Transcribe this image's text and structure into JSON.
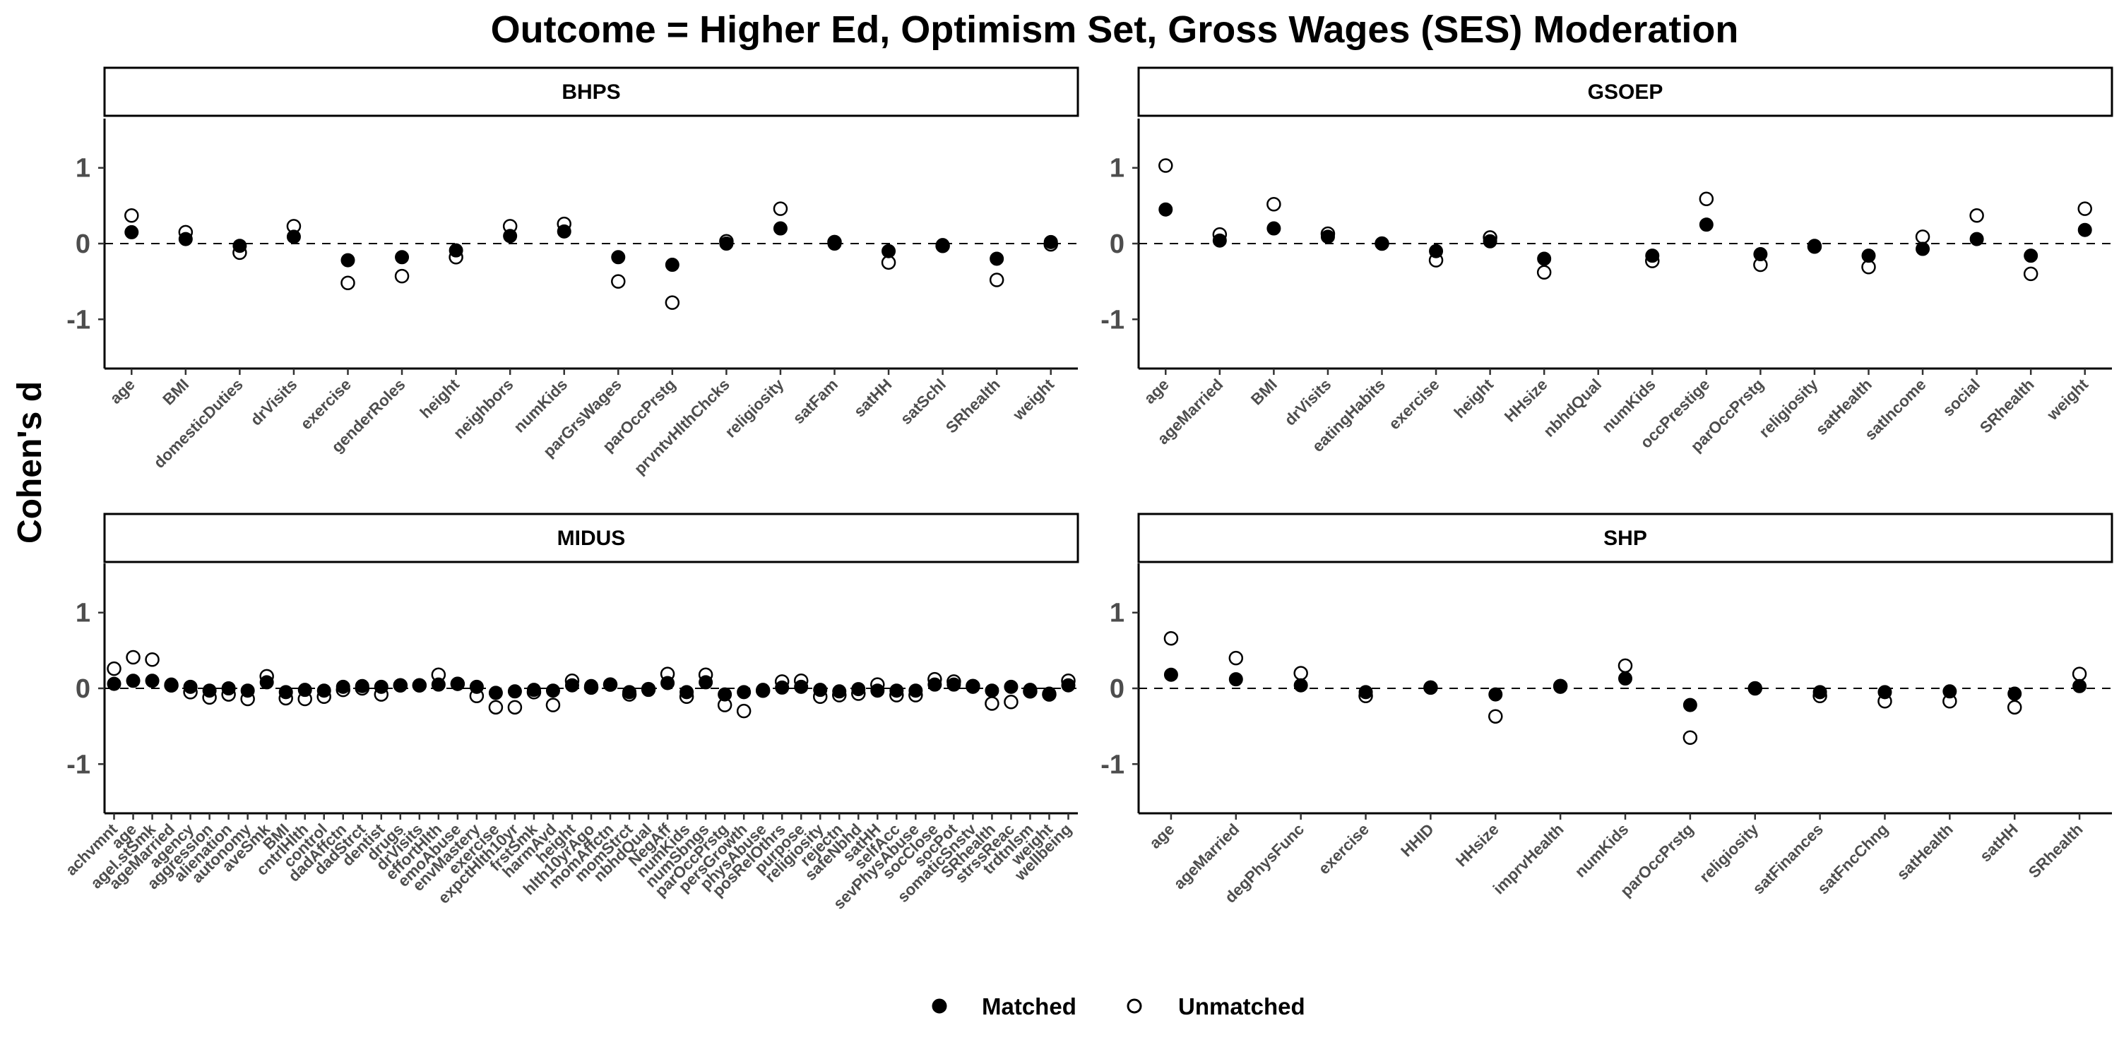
{
  "chart_data": {
    "type": "scatter",
    "title": "Outcome = Higher Ed, Optimism Set, Gross Wages (SES) Moderation",
    "ylabel": "Cohen's d",
    "ylim": [
      -1.65,
      1.65
    ],
    "yticks": [
      -1,
      0,
      1
    ],
    "reference_line": 0,
    "legend": {
      "position": "bottom",
      "entries": [
        {
          "label": "Matched",
          "marker": "filled-circle"
        },
        {
          "label": "Unmatched",
          "marker": "open-circle"
        }
      ]
    },
    "colors": {
      "points": "#000000",
      "border": "#000000",
      "strip_fill": "#ffffff"
    },
    "panels": [
      {
        "strip": "BHPS",
        "categories": [
          "age",
          "BMI",
          "domesticDuties",
          "drVisits",
          "exercise",
          "genderRoles",
          "height",
          "neighbors",
          "numKids",
          "parGrsWages",
          "parOccPrstg",
          "prvntvHlthChcks",
          "religiosity",
          "satFam",
          "satHH",
          "satSchl",
          "SRhealth",
          "weight"
        ],
        "series": [
          {
            "name": "Matched",
            "values": [
              0.15,
              0.06,
              -0.03,
              0.09,
              -0.22,
              -0.18,
              -0.09,
              0.1,
              0.16,
              -0.18,
              -0.28,
              0.0,
              0.2,
              0.0,
              -0.1,
              -0.02,
              -0.2,
              0.02
            ]
          },
          {
            "name": "Unmatched",
            "values": [
              0.37,
              0.15,
              -0.12,
              0.23,
              -0.52,
              -0.43,
              -0.18,
              0.23,
              0.26,
              -0.5,
              -0.78,
              0.03,
              0.46,
              0.02,
              -0.25,
              -0.03,
              -0.48,
              -0.01
            ]
          }
        ]
      },
      {
        "strip": "GSOEP",
        "categories": [
          "age",
          "ageMarried",
          "BMI",
          "drVisits",
          "eatingHabits",
          "exercise",
          "height",
          "HHsize",
          "nbhdQual",
          "numKids",
          "occPrestige",
          "parOccPrstg",
          "religiosity",
          "satHealth",
          "satIncome",
          "social",
          "SRhealth",
          "weight"
        ],
        "series": [
          {
            "name": "Matched",
            "values": [
              0.45,
              0.04,
              0.2,
              0.09,
              0.0,
              -0.1,
              0.03,
              -0.2,
              null,
              -0.16,
              0.25,
              -0.14,
              -0.03,
              -0.16,
              -0.07,
              0.06,
              -0.16,
              0.18
            ]
          },
          {
            "name": "Unmatched",
            "values": [
              1.03,
              0.12,
              0.52,
              0.13,
              0.0,
              -0.22,
              0.08,
              -0.38,
              null,
              -0.23,
              0.59,
              -0.28,
              -0.04,
              -0.31,
              0.09,
              0.37,
              -0.4,
              0.46
            ]
          }
        ]
      },
      {
        "strip": "MIDUS",
        "categories": [
          "achvmnt",
          "age",
          "agel.stSmk",
          "ageMarried",
          "agency",
          "aggression",
          "alienation",
          "autonomy",
          "aveSmk",
          "BMI",
          "cntrlHlth",
          "control",
          "dadAffctn",
          "dadStrct",
          "dentist",
          "drugs",
          "drVisits",
          "effortHlth",
          "emoAbuse",
          "envMastery",
          "exercise",
          "expctHlth10yr",
          "frstSmk",
          "harmAvd",
          "height",
          "hlth10yrAgo",
          "momAffctn",
          "momStrct",
          "nbhdQual",
          "NegAff",
          "numKids",
          "numSbngs",
          "parOccPrstg",
          "persGrowth",
          "physAbuse",
          "posRelOthrs",
          "purpose",
          "religiosity",
          "rejectn",
          "safeNbhd",
          "satHH",
          "selfAcc",
          "sevPhysAbuse",
          "socClose",
          "socPot",
          "somaticSnstv",
          "SRhealth",
          "strssReac",
          "trdtnlsm",
          "weight",
          "wellbeing"
        ],
        "series": [
          {
            "name": "Matched",
            "values": [
              0.06,
              0.1,
              0.1,
              0.05,
              0.02,
              -0.03,
              0.0,
              -0.03,
              0.08,
              -0.05,
              -0.02,
              -0.03,
              0.02,
              0.03,
              0.02,
              0.04,
              0.04,
              0.05,
              0.06,
              0.02,
              -0.06,
              -0.04,
              -0.02,
              -0.03,
              0.04,
              0.03,
              0.05,
              -0.05,
              -0.02,
              0.07,
              -0.05,
              0.08,
              -0.08,
              -0.05,
              -0.02,
              0.01,
              0.02,
              -0.02,
              -0.04,
              -0.01,
              -0.03,
              -0.03,
              -0.03,
              0.05,
              0.05,
              0.02,
              -0.03,
              0.02,
              -0.02,
              -0.07,
              0.04
            ]
          },
          {
            "name": "Unmatched",
            "values": [
              0.26,
              0.41,
              0.38,
              0.04,
              -0.05,
              -0.12,
              -0.08,
              -0.14,
              0.16,
              -0.13,
              -0.14,
              -0.11,
              -0.02,
              0.0,
              -0.08,
              0.04,
              0.04,
              0.18,
              0.06,
              -0.1,
              -0.25,
              -0.25,
              -0.05,
              -0.22,
              0.1,
              0.01,
              0.05,
              -0.08,
              -0.01,
              0.19,
              -0.11,
              0.18,
              -0.22,
              -0.3,
              -0.03,
              0.09,
              0.1,
              -0.11,
              -0.09,
              -0.07,
              0.05,
              -0.09,
              -0.09,
              0.12,
              0.09,
              0.03,
              -0.2,
              -0.18,
              -0.04,
              -0.08,
              0.1
            ]
          }
        ]
      },
      {
        "strip": "SHP",
        "categories": [
          "age",
          "ageMarried",
          "degPhysFunc",
          "exercise",
          "HHID",
          "HHsize",
          "imprvHealth",
          "numKids",
          "parOccPrstg",
          "religiosity",
          "satFinances",
          "satFncChng",
          "satHealth",
          "satHH",
          "SRhealth"
        ],
        "series": [
          {
            "name": "Matched",
            "values": [
              0.18,
              0.12,
              0.04,
              -0.05,
              0.01,
              -0.08,
              0.02,
              0.13,
              -0.22,
              0.0,
              -0.05,
              -0.05,
              -0.04,
              -0.07,
              0.03
            ]
          },
          {
            "name": "Unmatched",
            "values": [
              0.66,
              0.4,
              0.2,
              -0.1,
              0.01,
              -0.37,
              0.03,
              0.3,
              -0.65,
              0.0,
              -0.1,
              -0.17,
              -0.17,
              -0.25,
              0.19
            ]
          }
        ]
      }
    ]
  }
}
